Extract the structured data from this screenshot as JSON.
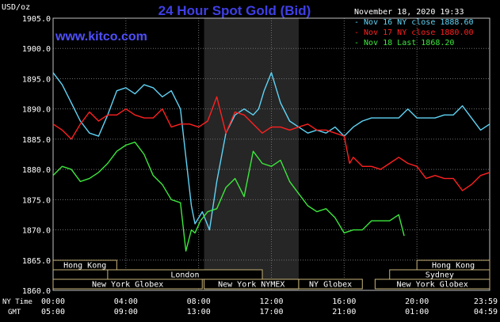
{
  "chart_data": {
    "type": "line",
    "title": "24 Hour Spot Gold (Bid)",
    "brand": "www.kitco.com",
    "datetime": "November 18, 2020 19:33",
    "ylabel": "USD/oz",
    "ylim": [
      1860,
      1905
    ],
    "y_ticks": [
      "1905.0",
      "1900.0",
      "1895.0",
      "1890.0",
      "1885.0",
      "1880.0",
      "1875.0",
      "1870.0",
      "1865.0",
      "1860.0"
    ],
    "ny_time_label": "NY Time",
    "gmt_label": "GMT",
    "x_ticks_ny": [
      "00:00",
      "04:00",
      "08:00",
      "12:00",
      "16:00",
      "20:00",
      "23:59"
    ],
    "x_ticks_gmt": [
      "05:00",
      "09:00",
      "13:00",
      "17:00",
      "21:00",
      "01:00",
      "04:59"
    ],
    "sessions": [
      {
        "label": "Hong Kong",
        "row": 0,
        "start": 0,
        "end": 3.5
      },
      {
        "label": "Hong Kong",
        "row": 0,
        "start": 20,
        "end": 24
      },
      {
        "label": "London",
        "row": 1,
        "start": 3,
        "end": 11.5
      },
      {
        "label": "Sydney",
        "row": 1,
        "start": 18.5,
        "end": 24
      },
      {
        "label": "New York Globex",
        "row": 2,
        "start": 0,
        "end": 8.2
      },
      {
        "label": "New York NYMEX",
        "row": 2,
        "start": 8.3,
        "end": 13.5
      },
      {
        "label": "NY Globex",
        "row": 2,
        "start": 13.5,
        "end": 17
      },
      {
        "label": "New York Globex",
        "row": 2,
        "start": 17.7,
        "end": 24
      }
    ],
    "shade_range": [
      8.3,
      13.5
    ],
    "series": [
      {
        "name": "Nov 16 NY close 1888.60",
        "color": "#5fd3f5",
        "x": [
          0,
          0.5,
          1,
          1.5,
          2,
          2.5,
          3,
          3.5,
          4,
          4.5,
          5,
          5.5,
          6,
          6.5,
          7,
          7.3,
          7.6,
          7.8,
          8.2,
          8.6,
          9,
          9.5,
          10,
          10.5,
          11,
          11.3,
          11.6,
          12,
          12.5,
          13,
          13.5,
          14,
          14.5,
          15,
          15.5,
          16,
          16.5,
          17,
          17.5,
          18,
          18.5,
          19,
          19.5,
          20,
          20.5,
          21,
          21.5,
          22,
          22.5,
          23,
          23.5,
          24
        ],
        "y": [
          1896,
          1894,
          1891,
          1888,
          1886,
          1885.5,
          1889,
          1893,
          1893.5,
          1892.5,
          1894,
          1893.5,
          1892,
          1893,
          1890,
          1882,
          1874,
          1871,
          1873,
          1870,
          1878,
          1886,
          1889,
          1890,
          1889,
          1890,
          1893,
          1896,
          1891,
          1888,
          1887,
          1886,
          1886.5,
          1886,
          1887,
          1885.5,
          1887,
          1888,
          1888.5,
          1888.5,
          1888.5,
          1888.5,
          1890,
          1888.5,
          1888.5,
          1888.5,
          1889,
          1889,
          1890.5,
          1888.5,
          1886.5,
          1887.5
        ]
      },
      {
        "name": "Nov 17 NY close 1880.00",
        "color": "#ff2020",
        "x": [
          0,
          0.5,
          1,
          1.5,
          2,
          2.5,
          3,
          3.5,
          4,
          4.5,
          5,
          5.5,
          6,
          6.5,
          7,
          7.5,
          8,
          8.5,
          9,
          9.5,
          10,
          10.5,
          11,
          11.5,
          12,
          12.5,
          13,
          13.5,
          14,
          14.5,
          15,
          15.5,
          16,
          16.3,
          16.5,
          17,
          17.5,
          18,
          18.5,
          19,
          19.5,
          20,
          20.5,
          21,
          21.5,
          22,
          22.5,
          23,
          23.5,
          24
        ],
        "y": [
          1887.5,
          1886.5,
          1885,
          1887.5,
          1889.5,
          1888,
          1889,
          1889,
          1890,
          1889,
          1888.5,
          1888.5,
          1890,
          1887,
          1887.5,
          1887.5,
          1887,
          1888,
          1892,
          1886,
          1889.5,
          1889,
          1887.5,
          1886,
          1887,
          1887,
          1886.5,
          1887,
          1887.5,
          1886.5,
          1886.5,
          1886,
          1885.5,
          1881,
          1882,
          1880.5,
          1880.5,
          1880,
          1881,
          1882,
          1881,
          1880.5,
          1878.5,
          1879,
          1878.5,
          1878.5,
          1876.5,
          1877.5,
          1879,
          1879.5
        ]
      },
      {
        "name": "Nov 18 Last 1868.20",
        "color": "#3ce83c",
        "x": [
          0,
          0.5,
          1,
          1.5,
          2,
          2.5,
          3,
          3.5,
          4,
          4.5,
          5,
          5.5,
          6,
          6.5,
          7,
          7.3,
          7.6,
          7.8,
          8.1,
          8.5,
          9,
          9.5,
          10,
          10.5,
          11,
          11.5,
          12,
          12.5,
          13,
          13.5,
          14,
          14.5,
          15,
          15.5,
          16,
          16.5,
          17,
          17.5,
          18,
          18.5,
          19,
          19.3
        ],
        "y": [
          1879,
          1880.5,
          1880,
          1878,
          1878.5,
          1879.5,
          1881,
          1883,
          1884,
          1884.5,
          1882.5,
          1879,
          1877.5,
          1875,
          1874.5,
          1866.5,
          1870,
          1869.5,
          1871.5,
          1873,
          1873.5,
          1877,
          1878.5,
          1875.5,
          1883,
          1881,
          1880.5,
          1881.5,
          1878,
          1876,
          1874,
          1873,
          1873.5,
          1872,
          1869.5,
          1870,
          1870,
          1871.5,
          1871.5,
          1871.5,
          1872.5,
          1869
        ]
      }
    ]
  }
}
